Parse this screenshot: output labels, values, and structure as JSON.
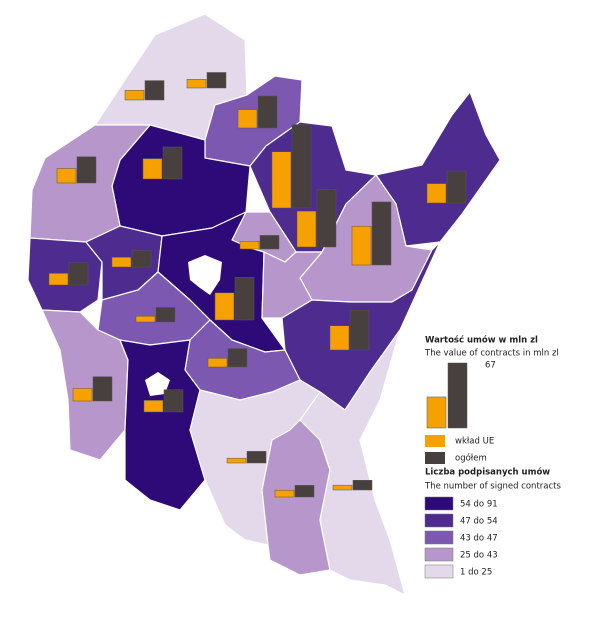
{
  "chart_data": {
    "type": "map",
    "legend": {
      "title": "Wartość umów w mln zl",
      "subtitle": "The value of contracts in mln zl",
      "reference_eu": 32,
      "reference_total": 67,
      "eu_label": "wkład UE",
      "total_label": "ogółem",
      "eu_color": "#f7a100",
      "total_color": "#48403f"
    },
    "classes_title": "Liczba podpisanych umów",
    "classes_subtitle": "The number of signed contracts",
    "classes": [
      {
        "label": "54 do 91",
        "color": "#2d0a78"
      },
      {
        "label": "47 do 54",
        "color": "#4d2b8f"
      },
      {
        "label": "43 do 47",
        "color": "#7c58b0"
      },
      {
        "label": "25 do 43",
        "color": "#b796cc"
      },
      {
        "label": "1 do 25",
        "color": "#e4d9eb"
      }
    ],
    "bars": [
      {
        "eu": 10,
        "total": 20
      },
      {
        "eu": 9,
        "total": 16
      },
      {
        "eu": 19,
        "total": 33
      },
      {
        "eu": 58,
        "total": 86
      },
      {
        "eu": 15,
        "total": 27
      },
      {
        "eu": 21,
        "total": 33
      },
      {
        "eu": 20,
        "total": 33
      },
      {
        "eu": 37,
        "total": 59
      },
      {
        "eu": 40,
        "total": 65
      },
      {
        "eu": 8,
        "total": 14
      },
      {
        "eu": 10,
        "total": 17
      },
      {
        "eu": 12,
        "total": 23
      },
      {
        "eu": 28,
        "total": 44
      },
      {
        "eu": 6,
        "total": 15
      },
      {
        "eu": 25,
        "total": 41
      },
      {
        "eu": 9,
        "total": 19
      },
      {
        "eu": 13,
        "total": 25
      },
      {
        "eu": 12,
        "total": 23
      },
      {
        "eu": 5,
        "total": 12
      },
      {
        "eu": 7,
        "total": 12
      },
      {
        "eu": 5,
        "total": 10
      }
    ]
  }
}
